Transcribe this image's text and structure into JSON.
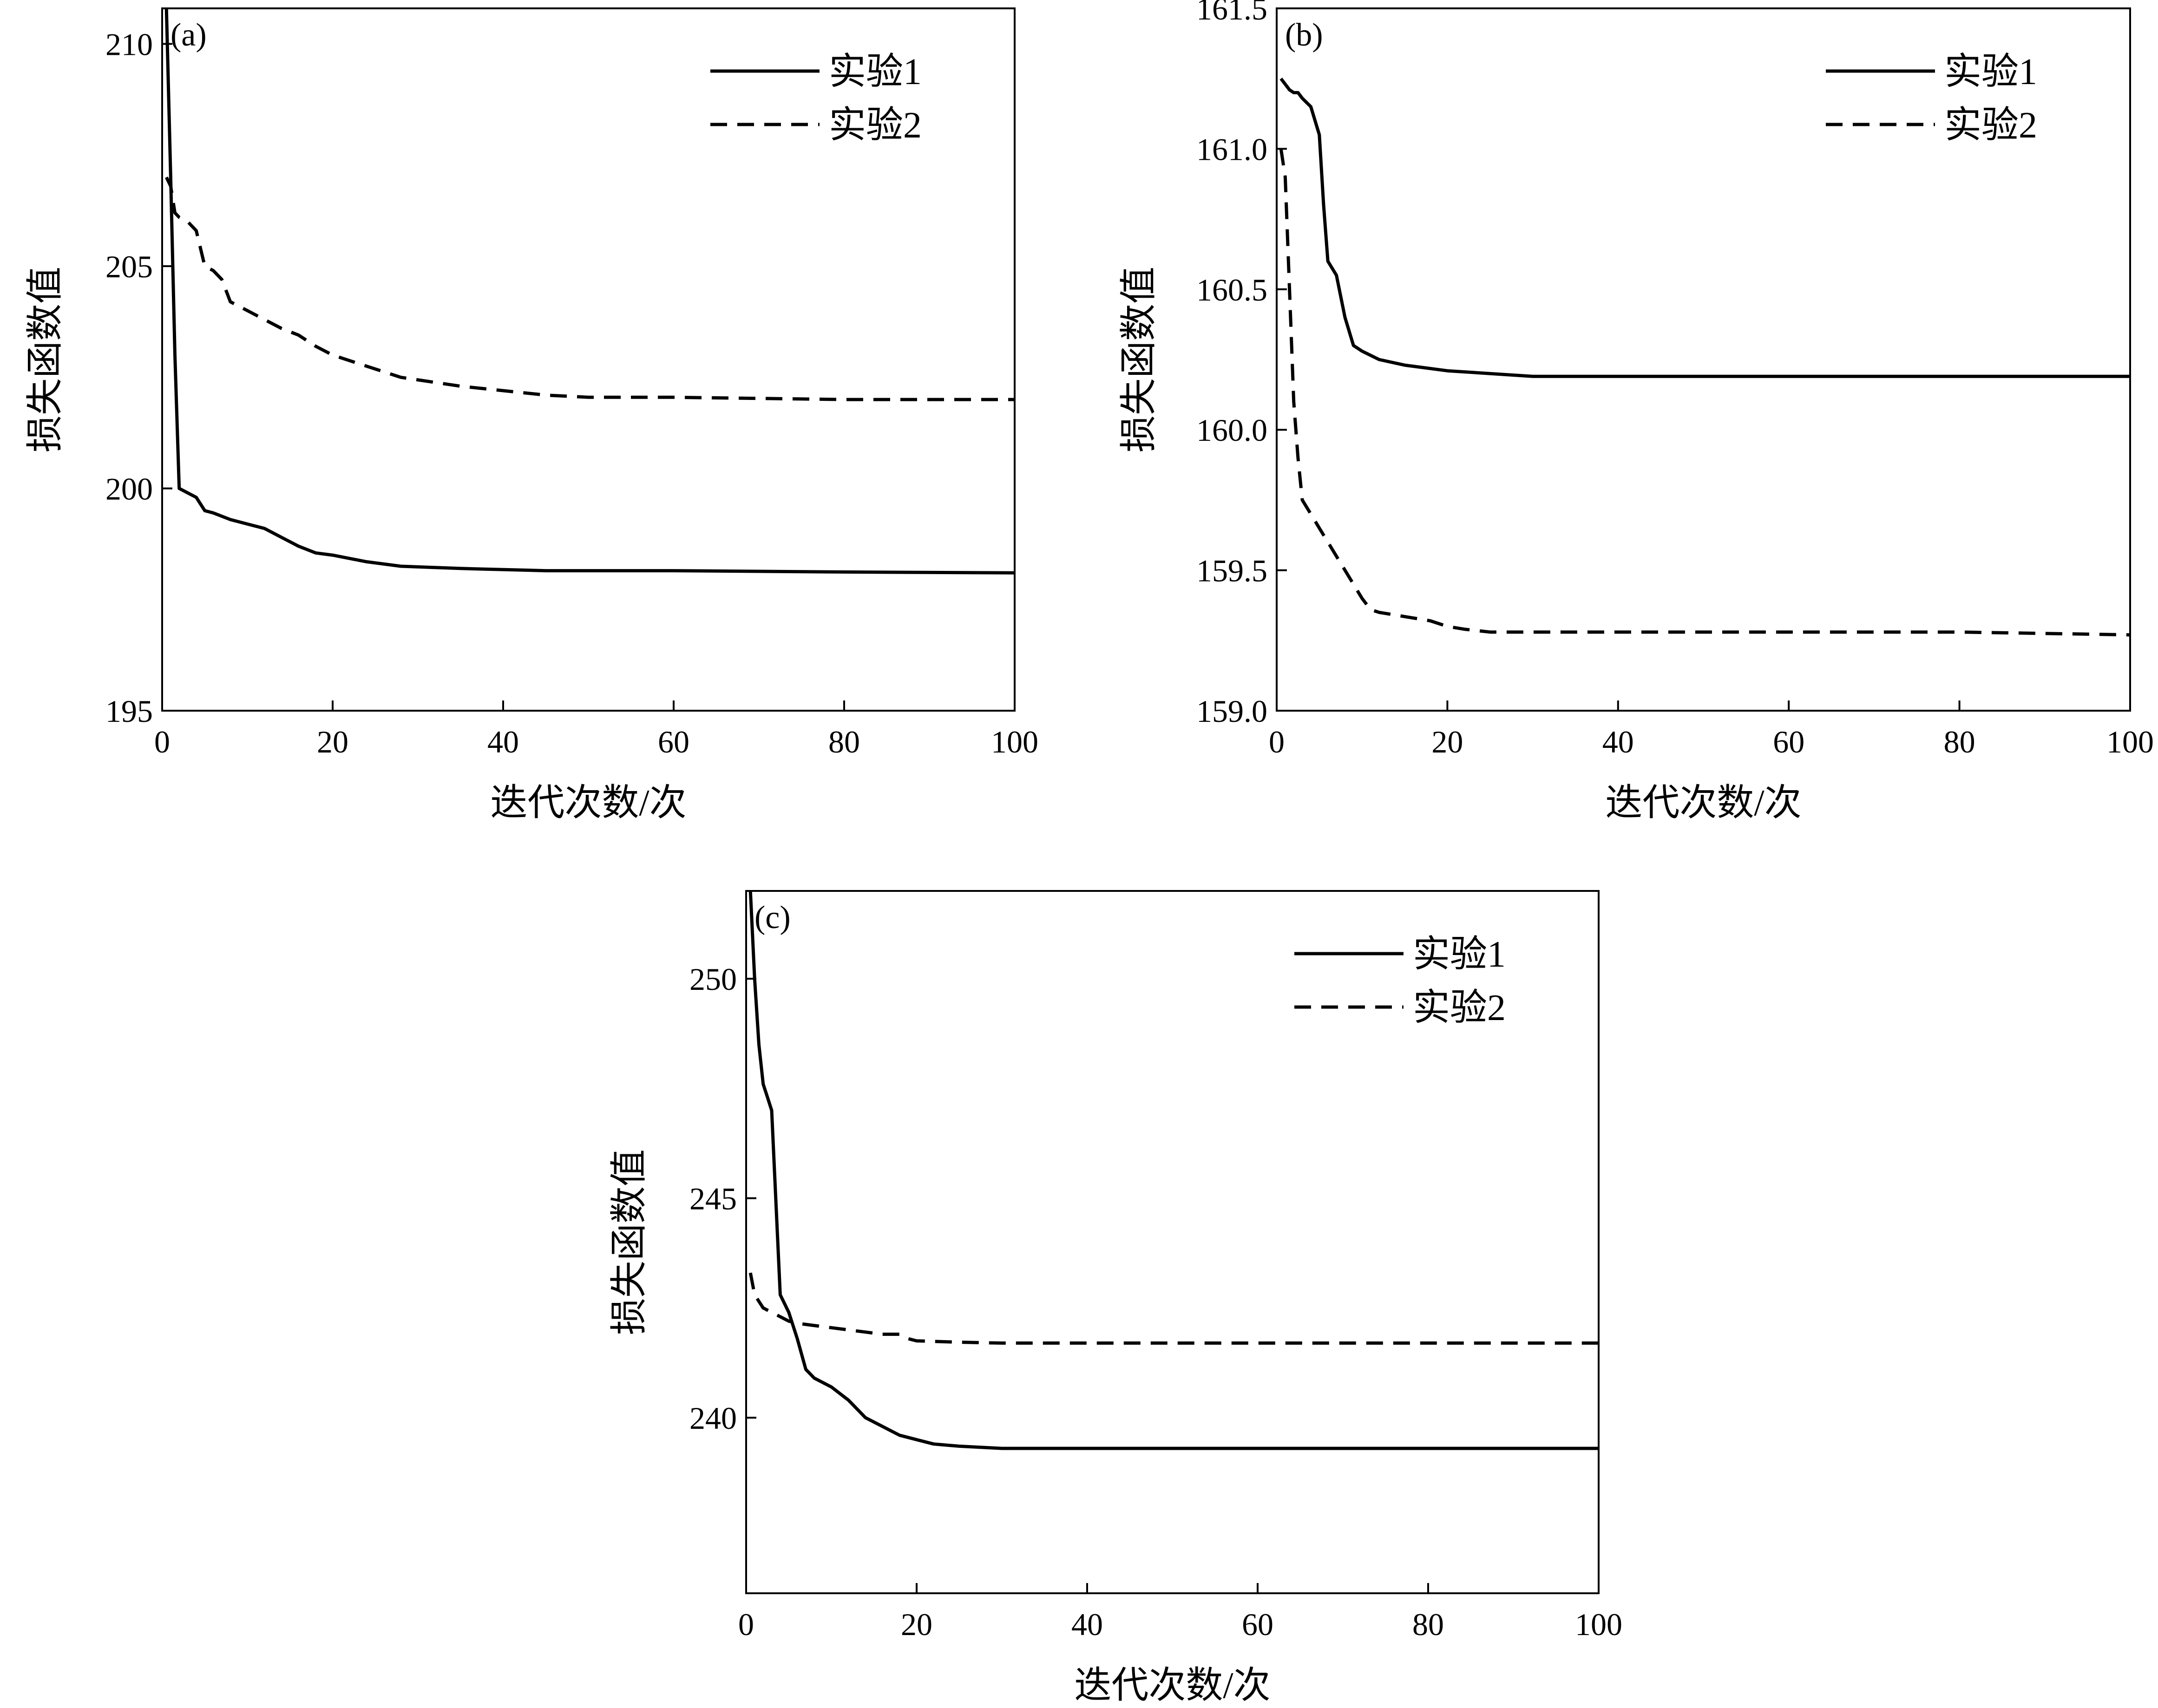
{
  "chart_data": [
    {
      "type": "line",
      "panel": "(a)",
      "xlabel": "迭代次数/次",
      "ylabel": "损失函数值",
      "xlim": [
        0,
        100
      ],
      "ylim": [
        195,
        210.8
      ],
      "xticks": [
        0,
        20,
        40,
        60,
        80,
        100
      ],
      "yticks": [
        195,
        200,
        205,
        210
      ],
      "ytick_labels": [
        "195",
        "200",
        "205",
        "210"
      ],
      "legend_position": "top-right",
      "grid": false,
      "series": [
        {
          "name": "实验1",
          "style": "solid",
          "x": [
            0.5,
            1,
            1.5,
            2,
            3,
            4,
            5,
            6,
            8,
            10,
            12,
            14,
            16,
            18,
            20,
            24,
            28,
            35,
            45,
            60,
            80,
            100
          ],
          "y": [
            210.8,
            207,
            203,
            200.0,
            199.9,
            199.8,
            199.5,
            199.45,
            199.3,
            199.2,
            199.1,
            198.9,
            198.7,
            198.55,
            198.5,
            198.35,
            198.25,
            198.2,
            198.15,
            198.15,
            198.12,
            198.1
          ]
        },
        {
          "name": "实验2",
          "style": "dashed",
          "x": [
            0.5,
            1,
            1.5,
            2,
            3,
            4,
            5,
            6,
            7,
            8,
            9,
            10,
            12,
            14,
            16,
            18,
            20,
            24,
            28,
            35,
            45,
            50,
            60,
            80,
            100
          ],
          "y": [
            207,
            206.8,
            206.2,
            206.1,
            206.0,
            205.8,
            205.0,
            204.9,
            204.7,
            204.2,
            204.1,
            204.0,
            203.8,
            203.6,
            203.45,
            203.2,
            203.0,
            202.75,
            202.5,
            202.3,
            202.1,
            202.05,
            202.05,
            202.0,
            202.0
          ]
        }
      ]
    },
    {
      "type": "line",
      "panel": "(b)",
      "xlabel": "迭代次数/次",
      "ylabel": "损失函数值",
      "xlim": [
        0,
        100
      ],
      "ylim": [
        159.0,
        161.5
      ],
      "xticks": [
        0,
        20,
        40,
        60,
        80,
        100
      ],
      "yticks": [
        159.0,
        159.5,
        160.0,
        160.5,
        161.0,
        161.5
      ],
      "ytick_labels": [
        "159.0",
        "159.5",
        "160.0",
        "160.5",
        "161.0",
        "161.5"
      ],
      "legend_position": "top-right",
      "grid": false,
      "series": [
        {
          "name": "实验1",
          "style": "solid",
          "x": [
            0.5,
            1,
            1.5,
            2,
            2.5,
            3,
            4,
            5,
            5.5,
            6,
            7,
            8,
            9,
            10,
            12,
            15,
            20,
            25,
            30,
            40,
            60,
            80,
            100
          ],
          "y": [
            161.25,
            161.23,
            161.21,
            161.2,
            161.2,
            161.18,
            161.15,
            161.05,
            160.8,
            160.6,
            160.55,
            160.4,
            160.3,
            160.28,
            160.25,
            160.23,
            160.21,
            160.2,
            160.19,
            160.19,
            160.19,
            160.19,
            160.19
          ]
        },
        {
          "name": "实验2",
          "style": "dashed",
          "x": [
            0.5,
            1,
            1.5,
            2,
            2.5,
            3,
            4,
            5,
            6,
            7,
            8,
            9,
            10,
            11,
            12,
            14,
            16,
            18,
            20,
            22,
            25,
            30,
            40,
            60,
            80,
            100
          ],
          "y": [
            161.0,
            160.9,
            160.5,
            160.1,
            159.9,
            159.75,
            159.7,
            159.65,
            159.6,
            159.55,
            159.5,
            159.45,
            159.4,
            159.36,
            159.35,
            159.34,
            159.33,
            159.32,
            159.3,
            159.29,
            159.28,
            159.28,
            159.28,
            159.28,
            159.28,
            159.27
          ]
        }
      ]
    },
    {
      "type": "line",
      "panel": "(c)",
      "xlabel": "迭代次数/次",
      "ylabel": "损失函数值",
      "xlim": [
        0,
        100
      ],
      "ylim": [
        236,
        252
      ],
      "xticks": [
        0,
        20,
        40,
        60,
        80,
        100
      ],
      "yticks": [
        240,
        245,
        250
      ],
      "ytick_labels": [
        "240",
        "245",
        "250"
      ],
      "legend_position": "top-right",
      "grid": false,
      "series": [
        {
          "name": "实验1",
          "style": "solid",
          "x": [
            0.5,
            1,
            1.5,
            2,
            2.5,
            3,
            4,
            5,
            6,
            7,
            8,
            10,
            12,
            14,
            16,
            18,
            20,
            22,
            25,
            30,
            40,
            60,
            80,
            100
          ],
          "y": [
            252,
            250,
            248.5,
            247.6,
            247.3,
            247.0,
            242.8,
            242.4,
            241.8,
            241.1,
            240.9,
            240.7,
            240.4,
            240.0,
            239.8,
            239.6,
            239.5,
            239.4,
            239.35,
            239.3,
            239.3,
            239.3,
            239.3,
            239.3
          ]
        },
        {
          "name": "实验2",
          "style": "dashed",
          "x": [
            0.5,
            1,
            2,
            3,
            4,
            5,
            6,
            8,
            10,
            12,
            14,
            16,
            18,
            19,
            20,
            25,
            30,
            40,
            60,
            80,
            100
          ],
          "y": [
            243.3,
            242.8,
            242.5,
            242.4,
            242.3,
            242.2,
            242.15,
            242.1,
            242.05,
            242.0,
            241.95,
            241.9,
            241.9,
            241.8,
            241.75,
            241.72,
            241.7,
            241.7,
            241.7,
            241.7,
            241.7
          ]
        }
      ]
    }
  ]
}
